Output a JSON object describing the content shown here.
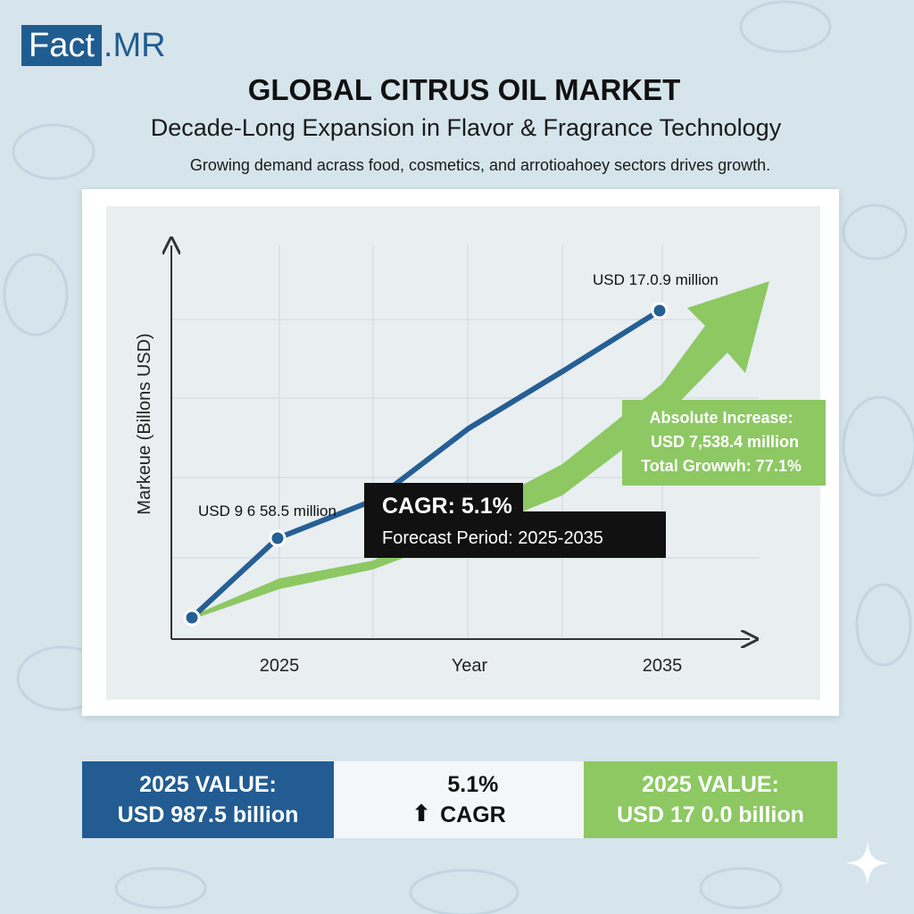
{
  "logo": {
    "part1": "Fact",
    "part2": ".MR"
  },
  "header": {
    "title": "GLOBAL CITRUS OIL MARKET",
    "subtitle": "Decade-Long Expansion in Flavor & Fragrance Technology",
    "tagline": "Growing demand acrass food, cosmetics, and arrotioahoey sectors drives growth."
  },
  "chart_data": {
    "type": "line",
    "title": "",
    "xlabel": "Year",
    "ylabel": "Markeue (Billons USD)",
    "x_tick_labels": [
      "2025",
      "2035"
    ],
    "grid": true,
    "series": [
      {
        "color": "#255f94",
        "points": [
          [
            0,
            0.03
          ],
          [
            1,
            0.28
          ],
          [
            2,
            0.42
          ],
          [
            3,
            0.62
          ],
          [
            4,
            0.85
          ],
          [
            5,
            1.0
          ]
        ]
      },
      {
        "color": "#8dc863",
        "points": [
          [
            0,
            0.03
          ],
          [
            1,
            0.17
          ],
          [
            2,
            0.23
          ],
          [
            3,
            0.34
          ],
          [
            4,
            0.56
          ],
          [
            5,
            0.9
          ]
        ]
      }
    ],
    "annotations": {
      "start_value": "USD 9 6 58.5 million",
      "end_value": "USD 17.0.9 million",
      "cagr_title": "CAGR: 5.1%",
      "cagr_period": "Forecast Period: 2025-2035",
      "increase_line1": "Absolute Increase:",
      "increase_line2": "USD 7,538.4 million",
      "increase_line3": "Total Growwh: 77.1%"
    }
  },
  "stats": {
    "left_line1": "2025 VALUE:",
    "left_line2": "USD 987.5 billion",
    "mid_line1": "5.1%",
    "mid_line2": "CAGR",
    "mid_arrow": "arrow-up-icon",
    "right_line1": "2025 VALUE:",
    "right_line2": "USD 17 0.0 billion"
  },
  "colors": {
    "background": "#d6e4ec",
    "brand_blue": "#1f5d91",
    "line_blue": "#255f94",
    "accent_green": "#8dc863",
    "callout_dark": "#111111"
  },
  "icons": {
    "sparkle": "sparkle-icon"
  }
}
